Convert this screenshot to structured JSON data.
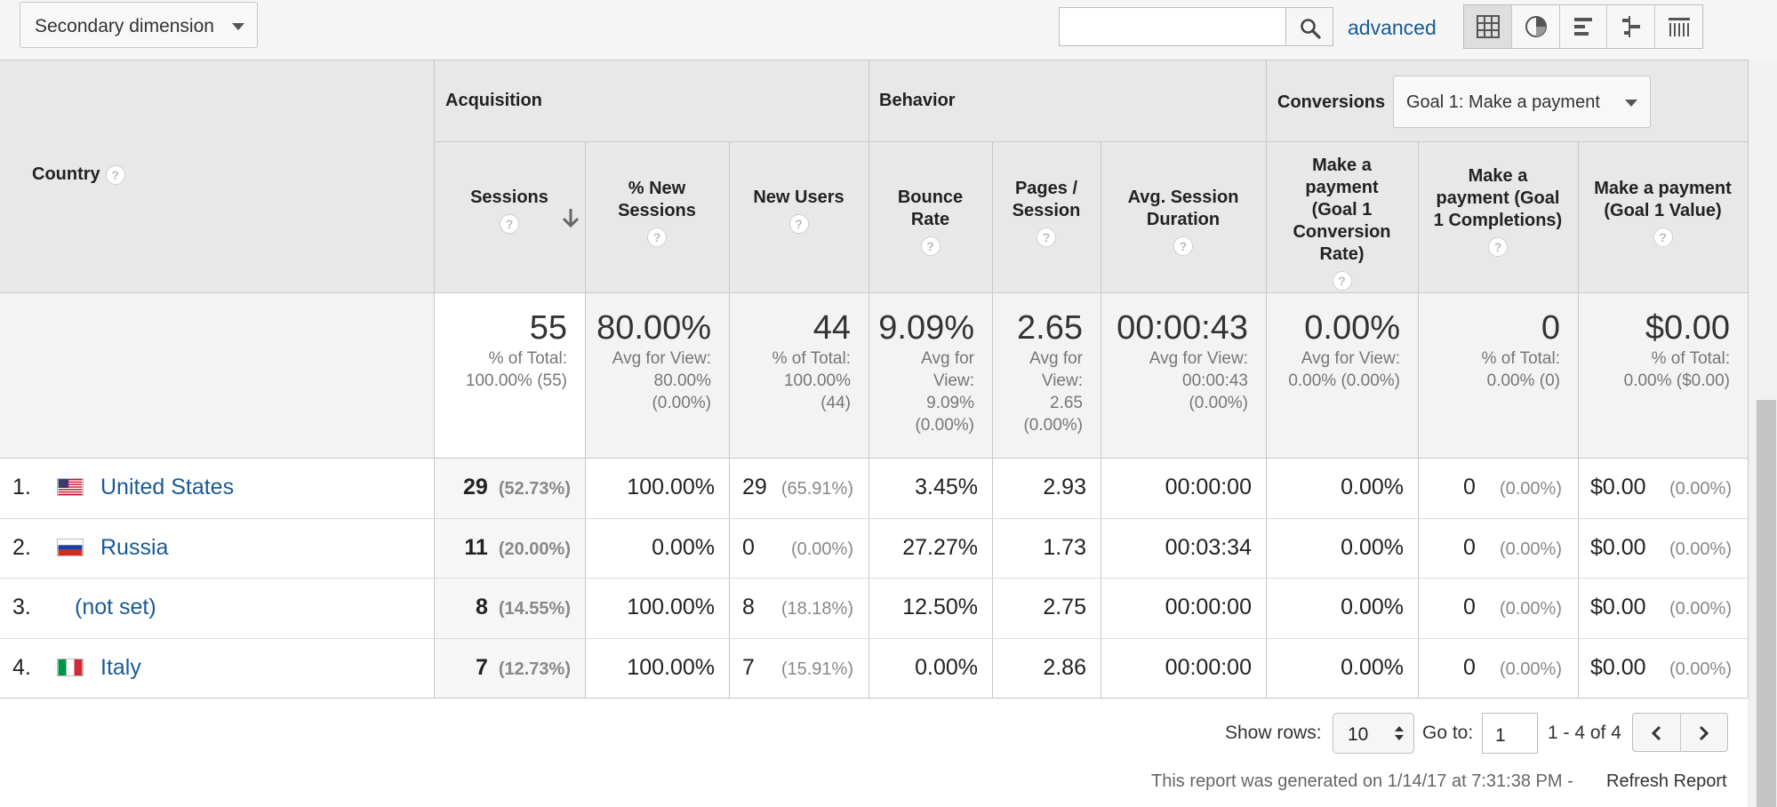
{
  "toolbar": {
    "secondary_dimension": "Secondary dimension",
    "search_value": "",
    "advanced_label": "advanced",
    "views": [
      "table-view-icon",
      "pie-view-icon",
      "performance-view-icon",
      "comparison-view-icon",
      "pivot-view-icon"
    ]
  },
  "table": {
    "country_header": "Country",
    "groups": {
      "acquisition": "Acquisition",
      "behavior": "Behavior",
      "conversions": "Conversions"
    },
    "goal_select": "Goal 1: Make a payment",
    "columns": [
      [
        "Sessions"
      ],
      [
        "% New",
        "Sessions"
      ],
      [
        "New Users"
      ],
      [
        "Bounce",
        "Rate"
      ],
      [
        "Pages /",
        "Session"
      ],
      [
        "Avg. Session",
        "Duration"
      ],
      [
        "Make a",
        "payment",
        "(Goal 1",
        "Conversion",
        "Rate)"
      ],
      [
        "Make a",
        "payment (Goal",
        "1 Completions)"
      ],
      [
        "Make a payment",
        "(Goal 1 Value)"
      ]
    ],
    "summary": [
      {
        "value": "55",
        "sub": [
          "% of Total:",
          "100.00% (55)"
        ]
      },
      {
        "value": "80.00%",
        "sub": [
          "Avg for View:",
          "80.00%",
          "(0.00%)"
        ]
      },
      {
        "value": "44",
        "sub": [
          "% of Total:",
          "100.00%",
          "(44)"
        ]
      },
      {
        "value": "9.09%",
        "sub": [
          "Avg for",
          "View:",
          "9.09%",
          "(0.00%)"
        ]
      },
      {
        "value": "2.65",
        "sub": [
          "Avg for",
          "View:",
          "2.65",
          "(0.00%)"
        ]
      },
      {
        "value": "00:00:43",
        "sub": [
          "Avg for View:",
          "00:00:43",
          "(0.00%)"
        ]
      },
      {
        "value": "0.00%",
        "sub": [
          "Avg for View:",
          "0.00% (0.00%)"
        ]
      },
      {
        "value": "0",
        "sub": [
          "% of Total:",
          "0.00% (0)"
        ]
      },
      {
        "value": "$0.00",
        "sub": [
          "% of Total:",
          "0.00% ($0.00)"
        ]
      }
    ],
    "rows": [
      {
        "index": "1.",
        "country": "United States",
        "flag": "us",
        "sessions": "29",
        "sessions_pct": "(52.73%)",
        "new_sessions": "100.00%",
        "new_users": "29",
        "new_users_pct": "(65.91%)",
        "bounce": "3.45%",
        "pages": "2.93",
        "duration": "00:00:00",
        "conv_rate": "0.00%",
        "completions": "0",
        "completions_pct": "(0.00%)",
        "value": "$0.00",
        "value_pct": "(0.00%)"
      },
      {
        "index": "2.",
        "country": "Russia",
        "flag": "ru",
        "sessions": "11",
        "sessions_pct": "(20.00%)",
        "new_sessions": "0.00%",
        "new_users": "0",
        "new_users_pct": "(0.00%)",
        "bounce": "27.27%",
        "pages": "1.73",
        "duration": "00:03:34",
        "conv_rate": "0.00%",
        "completions": "0",
        "completions_pct": "(0.00%)",
        "value": "$0.00",
        "value_pct": "(0.00%)"
      },
      {
        "index": "3.",
        "country": "(not set)",
        "flag": "",
        "sessions": "8",
        "sessions_pct": "(14.55%)",
        "new_sessions": "100.00%",
        "new_users": "8",
        "new_users_pct": "(18.18%)",
        "bounce": "12.50%",
        "pages": "2.75",
        "duration": "00:00:00",
        "conv_rate": "0.00%",
        "completions": "0",
        "completions_pct": "(0.00%)",
        "value": "$0.00",
        "value_pct": "(0.00%)"
      },
      {
        "index": "4.",
        "country": "Italy",
        "flag": "it",
        "sessions": "7",
        "sessions_pct": "(12.73%)",
        "new_sessions": "100.00%",
        "new_users": "7",
        "new_users_pct": "(15.91%)",
        "bounce": "0.00%",
        "pages": "2.86",
        "duration": "00:00:00",
        "conv_rate": "0.00%",
        "completions": "0",
        "completions_pct": "(0.00%)",
        "value": "$0.00",
        "value_pct": "(0.00%)"
      }
    ]
  },
  "footer": {
    "show_rows_label": "Show rows:",
    "show_rows_value": "10",
    "goto_label": "Go to:",
    "goto_value": "1",
    "range": "1 - 4 of 4",
    "generated": "This report was generated on 1/14/17 at 7:31:38 PM -",
    "refresh": "Refresh Report"
  },
  "colors": {
    "link": "#1a5a96",
    "header_bg": "#e8e8e8",
    "summary_bg": "#f3f3f3"
  }
}
